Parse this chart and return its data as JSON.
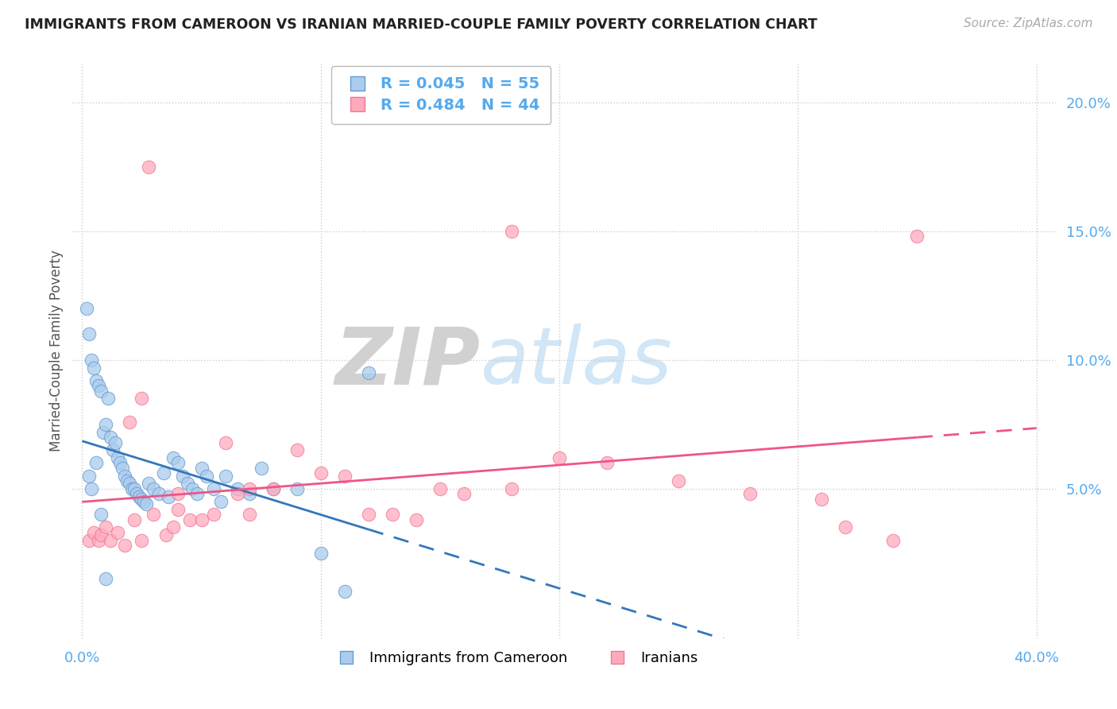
{
  "title": "IMMIGRANTS FROM CAMEROON VS IRANIAN MARRIED-COUPLE FAMILY POVERTY CORRELATION CHART",
  "source": "Source: ZipAtlas.com",
  "ylabel": "Married-Couple Family Poverty",
  "legend_label1": "Immigrants from Cameroon",
  "legend_label2": "Iranians",
  "R1": "0.045",
  "N1": "55",
  "R2": "0.484",
  "N2": "44",
  "blue_fill": "#aaccee",
  "blue_edge": "#6699cc",
  "pink_fill": "#ffaabb",
  "pink_edge": "#ee7799",
  "blue_line": "#3377bb",
  "pink_line": "#ee5588",
  "tick_color": "#55aaee",
  "title_color": "#222222",
  "source_color": "#aaaaaa",
  "grid_color": "#cccccc",
  "legend_box_color": "#bbbbbb",
  "watermark_color": "#cce4f5",
  "xlim": [
    0.0,
    0.4
  ],
  "ylim": [
    0.0,
    0.21
  ],
  "yticks": [
    0.05,
    0.1,
    0.15,
    0.2
  ],
  "ytick_labels": [
    "5.0%",
    "10.0%",
    "15.0%",
    "20.0%"
  ],
  "cam_x": [
    0.002,
    0.003,
    0.004,
    0.005,
    0.006,
    0.007,
    0.008,
    0.009,
    0.01,
    0.011,
    0.012,
    0.013,
    0.014,
    0.015,
    0.016,
    0.017,
    0.018,
    0.019,
    0.02,
    0.021,
    0.022,
    0.023,
    0.024,
    0.025,
    0.026,
    0.027,
    0.028,
    0.03,
    0.032,
    0.034,
    0.036,
    0.038,
    0.04,
    0.042,
    0.044,
    0.046,
    0.048,
    0.05,
    0.052,
    0.055,
    0.058,
    0.06,
    0.065,
    0.07,
    0.075,
    0.08,
    0.09,
    0.1,
    0.11,
    0.12,
    0.003,
    0.004,
    0.006,
    0.008,
    0.01
  ],
  "cam_y": [
    0.12,
    0.11,
    0.1,
    0.097,
    0.092,
    0.09,
    0.088,
    0.072,
    0.075,
    0.085,
    0.07,
    0.065,
    0.068,
    0.062,
    0.06,
    0.058,
    0.055,
    0.053,
    0.052,
    0.05,
    0.05,
    0.048,
    0.047,
    0.046,
    0.045,
    0.044,
    0.052,
    0.05,
    0.048,
    0.056,
    0.047,
    0.062,
    0.06,
    0.055,
    0.052,
    0.05,
    0.048,
    0.058,
    0.055,
    0.05,
    0.045,
    0.055,
    0.05,
    0.048,
    0.058,
    0.05,
    0.05,
    0.025,
    0.01,
    0.095,
    0.055,
    0.05,
    0.06,
    0.04,
    0.015
  ],
  "iran_x": [
    0.003,
    0.005,
    0.007,
    0.008,
    0.01,
    0.012,
    0.015,
    0.018,
    0.02,
    0.022,
    0.025,
    0.028,
    0.03,
    0.035,
    0.038,
    0.04,
    0.045,
    0.05,
    0.055,
    0.06,
    0.065,
    0.07,
    0.08,
    0.09,
    0.1,
    0.11,
    0.12,
    0.13,
    0.14,
    0.15,
    0.16,
    0.18,
    0.2,
    0.22,
    0.25,
    0.28,
    0.31,
    0.34,
    0.35,
    0.025,
    0.04,
    0.07,
    0.32,
    0.18
  ],
  "iran_y": [
    0.03,
    0.033,
    0.03,
    0.032,
    0.035,
    0.03,
    0.033,
    0.028,
    0.076,
    0.038,
    0.03,
    0.175,
    0.04,
    0.032,
    0.035,
    0.042,
    0.038,
    0.038,
    0.04,
    0.068,
    0.048,
    0.04,
    0.05,
    0.065,
    0.056,
    0.055,
    0.04,
    0.04,
    0.038,
    0.05,
    0.048,
    0.05,
    0.062,
    0.06,
    0.053,
    0.048,
    0.046,
    0.03,
    0.148,
    0.085,
    0.048,
    0.05,
    0.035,
    0.15
  ]
}
